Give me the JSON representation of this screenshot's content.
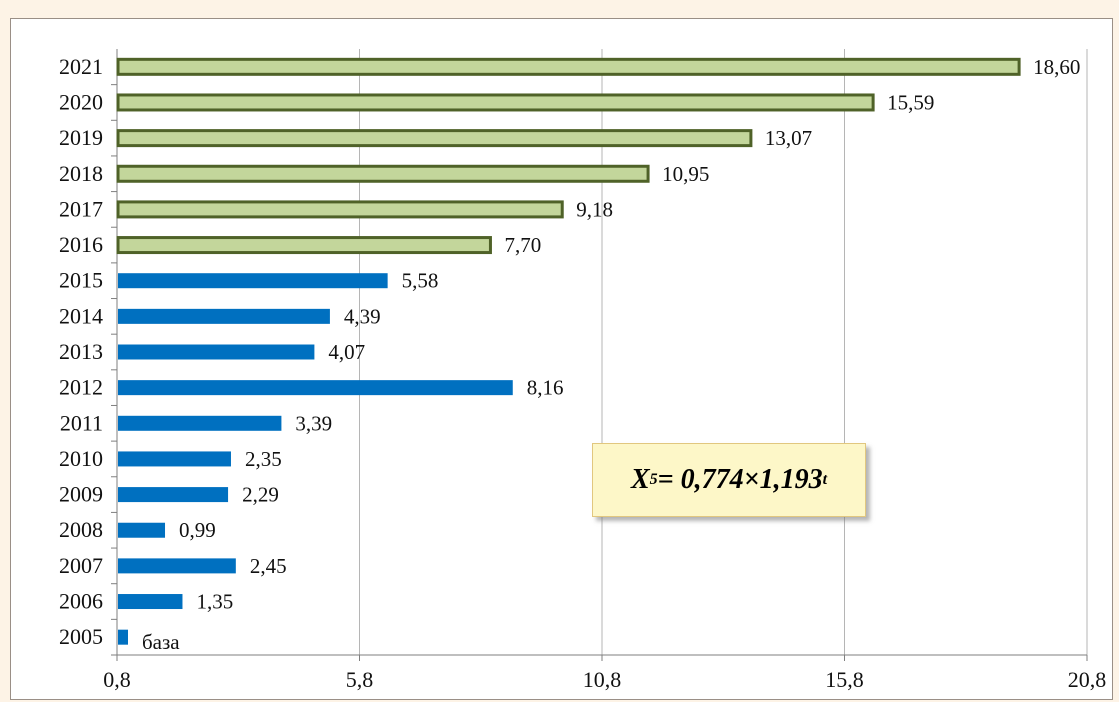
{
  "chart_data": {
    "type": "bar",
    "orientation": "horizontal",
    "categories": [
      "2005",
      "2006",
      "2007",
      "2008",
      "2009",
      "2010",
      "2011",
      "2012",
      "2013",
      "2014",
      "2015",
      "2016",
      "2017",
      "2018",
      "2019",
      "2020",
      "2021"
    ],
    "values": [
      0.2,
      1.35,
      2.45,
      0.99,
      2.29,
      2.35,
      3.39,
      8.16,
      4.07,
      4.39,
      5.58,
      7.7,
      9.18,
      10.95,
      13.07,
      15.59,
      18.6
    ],
    "value_labels": [
      "база",
      "1,35",
      "2,45",
      "0,99",
      "2,29",
      "2,35",
      "3,39",
      "8,16",
      "4,07",
      "4,39",
      "5,58",
      "7,70",
      "9,18",
      "10,95",
      "13,07",
      "15,59",
      "18,60"
    ],
    "series": [
      {
        "values": [
          0.2,
          1.35,
          2.45,
          0.99,
          2.29,
          2.35,
          3.39,
          8.16,
          4.07,
          4.39,
          5.58,
          null,
          null,
          null,
          null,
          null,
          null
        ],
        "color": "#0070c0"
      },
      {
        "values": [
          null,
          null,
          null,
          null,
          null,
          null,
          null,
          null,
          null,
          null,
          null,
          7.7,
          9.18,
          10.95,
          13.07,
          15.59,
          18.6
        ],
        "color": "#c3d69b",
        "border": "#4f6228"
      }
    ],
    "x_ticks": [
      "0,8",
      "5,8",
      "10,8",
      "15,8",
      "20,8"
    ],
    "x_tick_values": [
      0.8,
      5.8,
      10.8,
      15.8,
      20.8
    ],
    "xlim": [
      0.8,
      20.8
    ],
    "grid": "vertical",
    "title": "",
    "xlabel": "",
    "ylabel": ""
  },
  "annotation": {
    "base": "X",
    "sub": "5",
    "mid": "= 0,774×1,193",
    "sup": "t"
  }
}
